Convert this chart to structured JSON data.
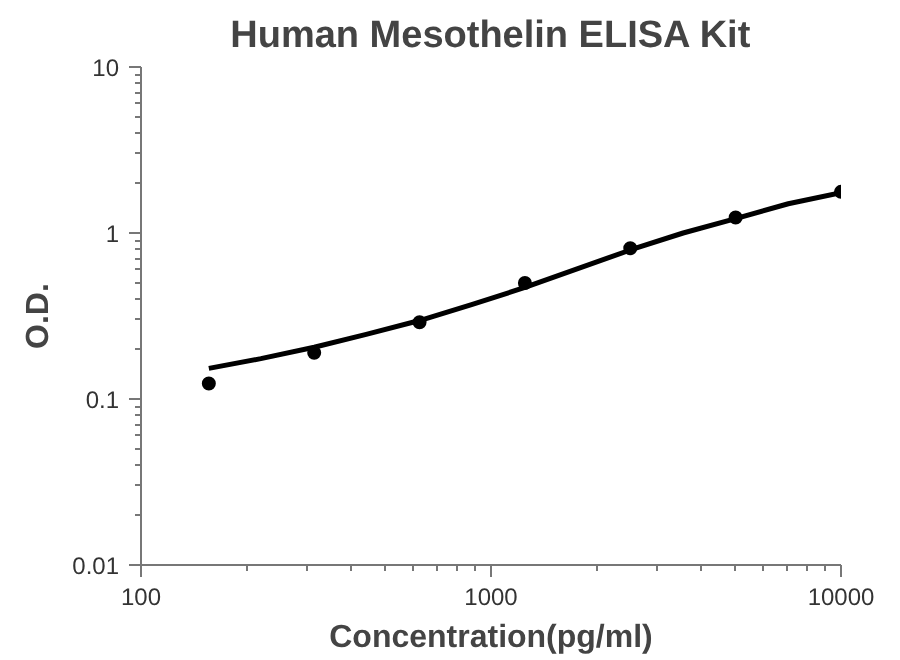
{
  "chart_data": {
    "type": "scatter",
    "title": "Human Mesothelin ELISA Kit",
    "xlabel": "Concentration(pg/ml)",
    "ylabel": "O.D.",
    "log": "xy",
    "xlim": [
      100,
      10000
    ],
    "ylim": [
      0.01,
      10
    ],
    "xticks": [
      100,
      1000,
      10000
    ],
    "yticks": [
      0.01,
      0.1,
      1,
      10
    ],
    "grid": false,
    "marker": "circle",
    "series": [
      {
        "color": "#000000",
        "x": [
          156.25,
          312.5,
          625,
          1250,
          2500,
          5000,
          10000
        ],
        "values": [
          0.124,
          0.19,
          0.29,
          0.5,
          0.81,
          1.24,
          1.77
        ]
      },
      {
        "type": "line",
        "marker": "none",
        "color": "#000000",
        "line_style": "solid",
        "x": [
          156.25,
          220,
          312.5,
          440,
          625,
          880,
          1250,
          1770,
          2500,
          3540,
          5000,
          7070,
          10000
        ],
        "values": [
          0.153,
          0.175,
          0.205,
          0.245,
          0.297,
          0.37,
          0.47,
          0.61,
          0.79,
          1.0,
          1.22,
          1.5,
          1.75
        ]
      }
    ]
  }
}
